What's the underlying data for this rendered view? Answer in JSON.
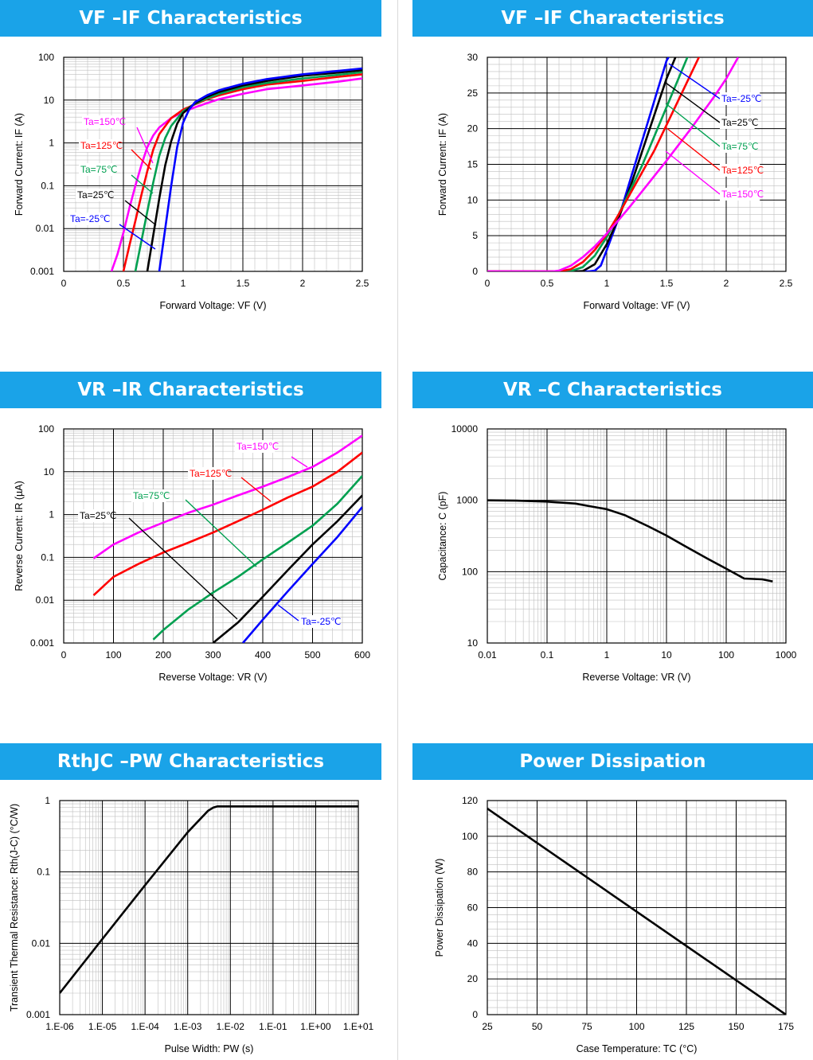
{
  "colors": {
    "banner": "#1aa3e8",
    "series": {
      "Ta=150℃": "#ff00ff",
      "Ta=125℃": "#ff0000",
      "Ta=75℃": "#00a050",
      "Ta=25℃": "#000000",
      "Ta=-25℃": "#0000ff"
    }
  },
  "chart_data": [
    {
      "id": "vf_if_log",
      "type": "line",
      "title": "VF –IF Characteristics",
      "xlabel": "Forward Voltage: VF (V)",
      "ylabel": "Forward Current: IF (A)",
      "x_scale": "linear",
      "y_scale": "log",
      "xlim": [
        0,
        2.5
      ],
      "ylim": [
        0.001,
        100
      ],
      "xticks": [
        "0",
        "0.5",
        "1",
        "1.5",
        "2",
        "2.5"
      ],
      "yticks": [
        "0.001",
        "0.01",
        "0.1",
        "1",
        "10",
        "100"
      ],
      "grid": true,
      "series": [
        {
          "name": "Ta=150℃",
          "x": [
            0.4,
            0.45,
            0.5,
            0.55,
            0.6,
            0.65,
            0.7,
            0.75,
            0.8,
            0.9,
            1.0,
            1.1,
            1.2,
            1.3,
            1.5,
            1.7,
            2.0,
            2.3,
            2.5
          ],
          "y": [
            0.001,
            0.0025,
            0.008,
            0.03,
            0.1,
            0.3,
            0.8,
            1.5,
            2.3,
            3.8,
            5.3,
            6.8,
            8.5,
            10.5,
            14,
            18,
            22,
            27,
            32
          ]
        },
        {
          "name": "Ta=125℃",
          "x": [
            0.5,
            0.55,
            0.6,
            0.65,
            0.7,
            0.75,
            0.8,
            0.9,
            1.0,
            1.1,
            1.2,
            1.3,
            1.5,
            1.7,
            2.0,
            2.3,
            2.5
          ],
          "y": [
            0.001,
            0.004,
            0.015,
            0.06,
            0.22,
            0.7,
            1.6,
            3.8,
            6.0,
            8.0,
            10.5,
            13,
            18,
            23,
            28,
            35,
            40
          ]
        },
        {
          "name": "Ta=75℃",
          "x": [
            0.6,
            0.65,
            0.7,
            0.75,
            0.8,
            0.85,
            0.9,
            1.0,
            1.1,
            1.2,
            1.3,
            1.5,
            1.7,
            2.0,
            2.3,
            2.5
          ],
          "y": [
            0.001,
            0.005,
            0.025,
            0.12,
            0.5,
            1.3,
            2.5,
            5.5,
            8.2,
            11,
            14,
            20,
            25,
            32,
            39,
            45
          ]
        },
        {
          "name": "Ta=25℃",
          "x": [
            0.7,
            0.75,
            0.8,
            0.85,
            0.9,
            0.95,
            1.0,
            1.1,
            1.2,
            1.3,
            1.5,
            1.7,
            2.0,
            2.3,
            2.5
          ],
          "y": [
            0.001,
            0.007,
            0.05,
            0.3,
            1.1,
            2.8,
            5.0,
            8.5,
            12,
            15.5,
            22,
            28,
            37,
            44,
            50
          ]
        },
        {
          "name": "Ta=-25℃",
          "x": [
            0.8,
            0.85,
            0.9,
            0.95,
            1.0,
            1.05,
            1.1,
            1.2,
            1.3,
            1.5,
            1.7,
            2.0,
            2.3,
            2.5
          ],
          "y": [
            0.001,
            0.01,
            0.1,
            0.8,
            3.0,
            6.0,
            9.0,
            13,
            17,
            24,
            31,
            40,
            48,
            55
          ]
        }
      ],
      "labels": [
        {
          "text": "Ta=150℃",
          "series": "Ta=150℃"
        },
        {
          "text": "Ta=125℃",
          "series": "Ta=125℃"
        },
        {
          "text": "Ta=75℃",
          "series": "Ta=75℃"
        },
        {
          "text": "Ta=25℃",
          "series": "Ta=25℃"
        },
        {
          "text": "Ta=-25℃",
          "series": "Ta=-25℃"
        }
      ]
    },
    {
      "id": "vf_if_lin",
      "type": "line",
      "title": "VF –IF Characteristics",
      "xlabel": "Forward Voltage: VF (V)",
      "ylabel": "Forward Current: IF (A)",
      "x_scale": "linear",
      "y_scale": "linear",
      "xlim": [
        0,
        2.5
      ],
      "ylim": [
        0,
        30
      ],
      "xticks": [
        "0",
        "0.5",
        "1",
        "1.5",
        "2",
        "2.5"
      ],
      "yticks": [
        "0",
        "5",
        "10",
        "15",
        "20",
        "25",
        "30"
      ],
      "grid": true,
      "series": [
        {
          "name": "Ta=-25℃",
          "x": [
            0,
            0.85,
            0.9,
            0.95,
            1.0,
            1.1,
            1.2,
            1.3,
            1.4,
            1.5,
            1.55
          ],
          "y": [
            0,
            0,
            0.1,
            0.8,
            3.0,
            7.5,
            13,
            18.5,
            24,
            29.5,
            31
          ]
        },
        {
          "name": "Ta=25℃",
          "x": [
            0,
            0.75,
            0.8,
            0.9,
            1.0,
            1.1,
            1.2,
            1.3,
            1.4,
            1.5,
            1.6
          ],
          "y": [
            0,
            0,
            0.05,
            1.0,
            3.8,
            7.5,
            12,
            17,
            22,
            27,
            31
          ]
        },
        {
          "name": "Ta=75℃",
          "x": [
            0,
            0.65,
            0.7,
            0.8,
            0.9,
            1.0,
            1.1,
            1.2,
            1.3,
            1.4,
            1.5,
            1.6,
            1.7
          ],
          "y": [
            0,
            0,
            0.05,
            0.6,
            2.2,
            4.8,
            8,
            11.5,
            15,
            19,
            23,
            27,
            31
          ]
        },
        {
          "name": "Ta=125℃",
          "x": [
            0,
            0.6,
            0.7,
            0.8,
            0.9,
            1.0,
            1.1,
            1.2,
            1.3,
            1.4,
            1.5,
            1.6,
            1.7,
            1.8
          ],
          "y": [
            0,
            0,
            0.3,
            1.3,
            3.0,
            5.2,
            8,
            11,
            14,
            17,
            20.5,
            24,
            27.5,
            31
          ]
        },
        {
          "name": "Ta=150℃",
          "x": [
            0,
            0.55,
            0.6,
            0.7,
            0.8,
            0.9,
            1.0,
            1.1,
            1.2,
            1.3,
            1.4,
            1.5,
            1.6,
            1.7,
            1.8,
            1.9,
            2.0,
            2.1
          ],
          "y": [
            0,
            0,
            0.1,
            0.8,
            2.0,
            3.5,
            5.3,
            7.2,
            9.2,
            11.3,
            13.4,
            15.5,
            17.7,
            19.9,
            22.2,
            24.5,
            27,
            30
          ]
        }
      ],
      "labels": [
        {
          "text": "Ta=-25℃",
          "series": "Ta=-25℃"
        },
        {
          "text": "Ta=25℃",
          "series": "Ta=25℃"
        },
        {
          "text": "Ta=75℃",
          "series": "Ta=75℃"
        },
        {
          "text": "Ta=125℃",
          "series": "Ta=125℃"
        },
        {
          "text": "Ta=150℃",
          "series": "Ta=150℃"
        }
      ]
    },
    {
      "id": "vr_ir",
      "type": "line",
      "title": "VR –IR Characteristics",
      "xlabel": "Reverse Voltage: VR (V)",
      "ylabel": "Reverse Current: IR (µA)",
      "x_scale": "linear",
      "y_scale": "log",
      "xlim": [
        0,
        600
      ],
      "ylim": [
        0.001,
        100
      ],
      "xticks": [
        "0",
        "100",
        "200",
        "300",
        "400",
        "500",
        "600"
      ],
      "yticks": [
        "0.001",
        "0.01",
        "0.1",
        "1",
        "10",
        "100"
      ],
      "grid": true,
      "series": [
        {
          "name": "Ta=150℃",
          "x": [
            60,
            100,
            150,
            200,
            250,
            300,
            350,
            400,
            450,
            500,
            550,
            600
          ],
          "y": [
            0.095,
            0.2,
            0.38,
            0.65,
            1.1,
            1.7,
            2.8,
            4.5,
            7.5,
            13,
            28,
            70
          ]
        },
        {
          "name": "Ta=125℃",
          "x": [
            60,
            100,
            150,
            200,
            250,
            300,
            350,
            400,
            450,
            500,
            550,
            600
          ],
          "y": [
            0.013,
            0.035,
            0.07,
            0.13,
            0.22,
            0.38,
            0.7,
            1.3,
            2.5,
            4.5,
            10,
            28
          ]
        },
        {
          "name": "Ta=75℃",
          "x": [
            180,
            200,
            250,
            300,
            350,
            400,
            450,
            500,
            550,
            600
          ],
          "y": [
            0.0012,
            0.002,
            0.006,
            0.015,
            0.035,
            0.09,
            0.22,
            0.55,
            1.8,
            8
          ]
        },
        {
          "name": "Ta=25℃",
          "x": [
            300,
            350,
            400,
            450,
            500,
            550,
            600
          ],
          "y": [
            0.001,
            0.003,
            0.012,
            0.05,
            0.2,
            0.7,
            2.8
          ]
        },
        {
          "name": "Ta=-25℃",
          "x": [
            360,
            400,
            450,
            500,
            550,
            600
          ],
          "y": [
            0.001,
            0.0035,
            0.016,
            0.07,
            0.3,
            1.5
          ]
        }
      ],
      "labels": [
        {
          "text": "Ta=150℃",
          "series": "Ta=150℃"
        },
        {
          "text": "Ta=125℃",
          "series": "Ta=125℃"
        },
        {
          "text": "Ta=75℃",
          "series": "Ta=75℃"
        },
        {
          "text": "Ta=25℃",
          "series": "Ta=25℃"
        },
        {
          "text": "Ta=-25℃",
          "series": "Ta=-25℃"
        }
      ]
    },
    {
      "id": "vr_c",
      "type": "line",
      "title": "VR –C Characteristics",
      "xlabel": "Reverse Voltage: VR (V)",
      "ylabel": "Capacitance: C (pF)",
      "x_scale": "log",
      "y_scale": "log",
      "xlim": [
        0.01,
        1000
      ],
      "ylim": [
        10,
        10000
      ],
      "xticks": [
        "0.01",
        "0.1",
        "1",
        "10",
        "100",
        "1000"
      ],
      "yticks": [
        "10",
        "100",
        "1000",
        "10000"
      ],
      "grid": true,
      "series": [
        {
          "name": "",
          "x": [
            0.01,
            0.03,
            0.1,
            0.3,
            0.5,
            1,
            2,
            5,
            10,
            20,
            50,
            100,
            200,
            400,
            600
          ],
          "y": [
            1000,
            990,
            960,
            900,
            830,
            750,
            620,
            430,
            320,
            230,
            150,
            110,
            80,
            78,
            73
          ]
        }
      ]
    },
    {
      "id": "rthjc_pw",
      "type": "line",
      "title": "RthJC –PW Characteristics",
      "xlabel": "Pulse Width: PW (s)",
      "ylabel": "Transient Thermal Resistance: Rth(J-C) (°C/W)",
      "x_scale": "log",
      "y_scale": "log",
      "xlim": [
        1e-06,
        10
      ],
      "ylim": [
        0.001,
        1
      ],
      "xticks": [
        "1.E-06",
        "1.E-05",
        "1.E-04",
        "1.E-03",
        "1.E-02",
        "1.E-01",
        "1.E+00",
        "1.E+01"
      ],
      "yticks": [
        "0.001",
        "0.01",
        "0.1",
        "1"
      ],
      "grid": true,
      "series": [
        {
          "name": "",
          "x": [
            1e-06,
            1e-05,
            0.0001,
            0.001,
            0.003,
            0.004,
            0.005,
            0.01,
            0.1,
            1,
            10
          ],
          "y": [
            0.002,
            0.0115,
            0.065,
            0.36,
            0.72,
            0.8,
            0.83,
            0.83,
            0.83,
            0.83,
            0.83
          ]
        }
      ]
    },
    {
      "id": "power_dissipation",
      "type": "line",
      "title": "Power Dissipation",
      "xlabel": "Case Temperature: TC (°C)",
      "ylabel": "Power Dissipation (W)",
      "x_scale": "linear",
      "y_scale": "linear",
      "xlim": [
        25,
        175
      ],
      "ylim": [
        0,
        120
      ],
      "xticks": [
        "25",
        "50",
        "75",
        "100",
        "125",
        "150",
        "175"
      ],
      "yticks": [
        "0",
        "20",
        "40",
        "60",
        "80",
        "100",
        "120"
      ],
      "grid": true,
      "series": [
        {
          "name": "",
          "x": [
            25,
            175
          ],
          "y": [
            115.5,
            0
          ]
        }
      ]
    }
  ]
}
